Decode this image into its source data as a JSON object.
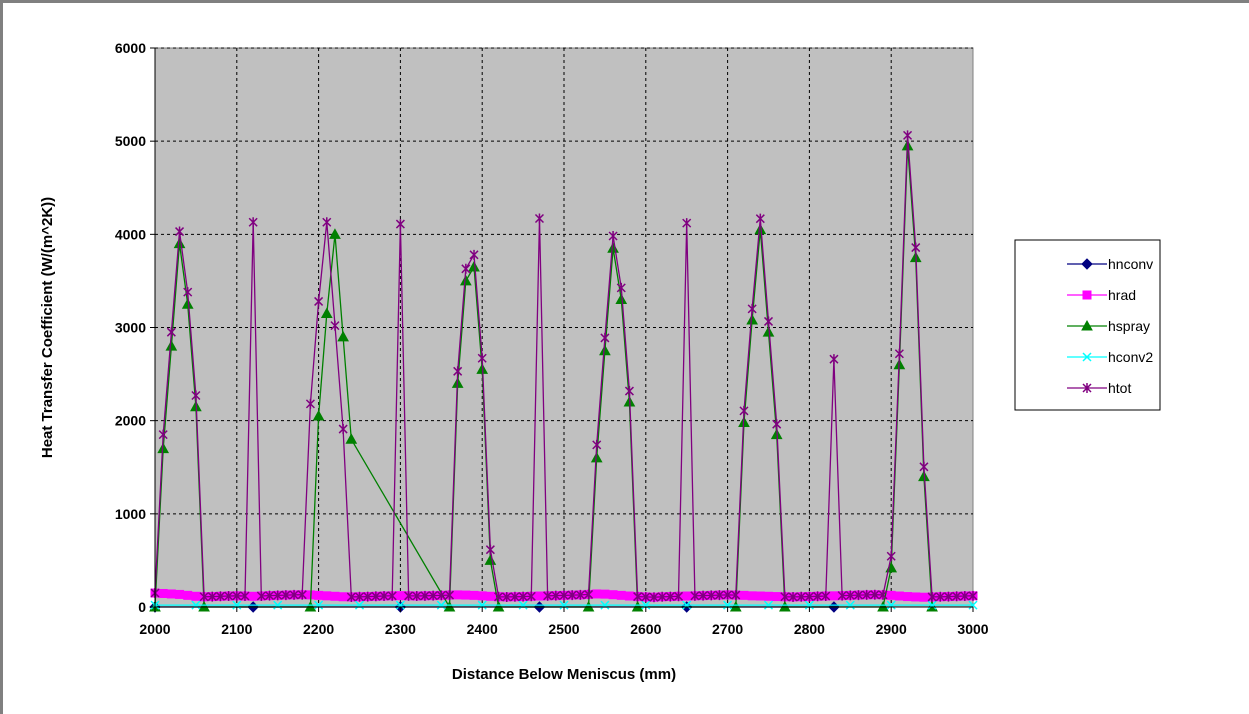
{
  "chart_data": {
    "type": "line",
    "title": "",
    "xlabel": "Distance Below Meniscus (mm)",
    "ylabel": "Heat Transfer Coefficient (W/(m^2K))",
    "xlim": [
      2000,
      3000
    ],
    "ylim": [
      0,
      6000
    ],
    "x_ticks": [
      "2000",
      "2100",
      "2200",
      "2300",
      "2400",
      "2500",
      "2600",
      "2700",
      "2800",
      "2900",
      "3000"
    ],
    "y_ticks": [
      "0",
      "1000",
      "2000",
      "3000",
      "4000",
      "5000",
      "6000"
    ],
    "grid": true,
    "plot_background": "#c0c0c0",
    "legend_position": "right",
    "series": [
      {
        "name": "hnconv",
        "color": "#000080",
        "marker": "diamond",
        "x": [
          2000,
          2120,
          2300,
          2470,
          2650,
          2830
        ],
        "y": [
          0,
          0,
          0,
          0,
          0,
          0
        ]
      },
      {
        "name": "hrad",
        "color": "#ff00ff",
        "marker": "square",
        "x": [
          2000,
          2010,
          2020,
          2030,
          2040,
          2050,
          2060,
          2070,
          2080,
          2090,
          2100,
          2110,
          2120,
          2130,
          2140,
          2150,
          2160,
          2170,
          2180,
          2190,
          2200,
          2210,
          2220,
          2230,
          2240,
          2250,
          2260,
          2270,
          2280,
          2290,
          2300,
          2310,
          2320,
          2330,
          2340,
          2350,
          2360,
          2370,
          2380,
          2390,
          2400,
          2410,
          2420,
          2430,
          2440,
          2450,
          2460,
          2470,
          2480,
          2490,
          2500,
          2510,
          2520,
          2530,
          2540,
          2550,
          2560,
          2570,
          2580,
          2590,
          2600,
          2610,
          2620,
          2630,
          2640,
          2650,
          2660,
          2670,
          2680,
          2690,
          2700,
          2710,
          2720,
          2730,
          2740,
          2750,
          2760,
          2770,
          2780,
          2790,
          2800,
          2810,
          2820,
          2830,
          2840,
          2850,
          2860,
          2870,
          2880,
          2890,
          2900,
          2910,
          2920,
          2930,
          2940,
          2950,
          2960,
          2970,
          2980,
          2990,
          3000
        ],
        "y": [
          150,
          145,
          140,
          135,
          125,
          115,
          110,
          112,
          115,
          118,
          120,
          118,
          115,
          118,
          122,
          125,
          128,
          130,
          132,
          130,
          125,
          120,
          115,
          110,
          108,
          110,
          112,
          115,
          118,
          120,
          122,
          120,
          118,
          120,
          122,
          125,
          128,
          130,
          128,
          125,
          120,
          115,
          110,
          108,
          110,
          112,
          115,
          118,
          120,
          122,
          125,
          128,
          130,
          135,
          140,
          138,
          132,
          125,
          118,
          112,
          108,
          105,
          110,
          112,
          115,
          118,
          120,
          122,
          125,
          128,
          130,
          128,
          125,
          120,
          118,
          115,
          112,
          110,
          108,
          110,
          112,
          115,
          118,
          120,
          122,
          125,
          128,
          130,
          132,
          130,
          125,
          118,
          112,
          108,
          105,
          108,
          110,
          112,
          115,
          118,
          120
        ]
      },
      {
        "name": "hspray",
        "color": "#008000",
        "marker": "triangle",
        "x": [
          2000,
          2010,
          2020,
          2030,
          2040,
          2050,
          2060,
          2190,
          2200,
          2210,
          2220,
          2230,
          2240,
          2360,
          2370,
          2380,
          2390,
          2400,
          2410,
          2420,
          2530,
          2540,
          2550,
          2560,
          2570,
          2580,
          2590,
          2710,
          2720,
          2730,
          2740,
          2750,
          2760,
          2770,
          2890,
          2900,
          2910,
          2920,
          2930,
          2940,
          2950
        ],
        "y": [
          0,
          1700,
          2800,
          3900,
          3250,
          2150,
          0,
          0,
          2050,
          3150,
          4000,
          2900,
          1800,
          0,
          2400,
          3500,
          3650,
          2550,
          500,
          0,
          0,
          1600,
          2750,
          3850,
          3300,
          2200,
          0,
          0,
          1980,
          3080,
          4050,
          2950,
          1850,
          0,
          0,
          420,
          2600,
          4950,
          3750,
          1400,
          0
        ]
      },
      {
        "name": "hconv2",
        "color": "#00ffff",
        "marker": "x",
        "x": [
          2000,
          2050,
          2100,
          2150,
          2200,
          2250,
          2300,
          2350,
          2400,
          2450,
          2500,
          2550,
          2600,
          2650,
          2700,
          2750,
          2800,
          2850,
          2900,
          2950,
          3000
        ],
        "y": [
          20,
          20,
          20,
          20,
          20,
          20,
          20,
          20,
          20,
          20,
          20,
          20,
          20,
          20,
          20,
          20,
          20,
          20,
          20,
          20,
          20
        ]
      },
      {
        "name": "htot",
        "color": "#800080",
        "marker": "star",
        "x": [
          2000,
          2010,
          2020,
          2030,
          2040,
          2050,
          2060,
          2070,
          2080,
          2090,
          2100,
          2110,
          2120,
          2130,
          2140,
          2150,
          2160,
          2170,
          2180,
          2190,
          2200,
          2210,
          2220,
          2230,
          2240,
          2250,
          2260,
          2270,
          2280,
          2290,
          2300,
          2310,
          2320,
          2330,
          2340,
          2350,
          2360,
          2370,
          2380,
          2390,
          2400,
          2410,
          2420,
          2430,
          2440,
          2450,
          2460,
          2470,
          2480,
          2490,
          2500,
          2510,
          2520,
          2530,
          2540,
          2550,
          2560,
          2570,
          2580,
          2590,
          2600,
          2610,
          2620,
          2630,
          2640,
          2650,
          2660,
          2670,
          2680,
          2690,
          2700,
          2710,
          2720,
          2730,
          2740,
          2750,
          2760,
          2770,
          2780,
          2790,
          2800,
          2810,
          2820,
          2830,
          2840,
          2850,
          2860,
          2870,
          2880,
          2890,
          2900,
          2910,
          2920,
          2930,
          2940,
          2950,
          2960,
          2970,
          2980,
          2990,
          3000
        ],
        "y": [
          150,
          1850,
          2950,
          4030,
          3380,
          2270,
          110,
          112,
          115,
          118,
          120,
          118,
          4130,
          118,
          122,
          125,
          128,
          130,
          132,
          2180,
          3280,
          4130,
          3020,
          1910,
          108,
          110,
          112,
          115,
          118,
          120,
          4110,
          120,
          118,
          120,
          122,
          125,
          128,
          2530,
          3630,
          3780,
          2670,
          615,
          110,
          108,
          110,
          112,
          115,
          4170,
          120,
          122,
          125,
          128,
          130,
          135,
          1740,
          2888,
          3982,
          3425,
          2318,
          112,
          108,
          105,
          110,
          112,
          115,
          4120,
          120,
          122,
          125,
          128,
          130,
          128,
          2105,
          3200,
          4168,
          3065,
          1962,
          110,
          108,
          110,
          112,
          115,
          118,
          2660,
          122,
          125,
          128,
          130,
          132,
          130,
          545,
          2718,
          5062,
          3858,
          1505,
          108,
          110,
          112,
          115,
          118,
          120
        ]
      }
    ]
  }
}
